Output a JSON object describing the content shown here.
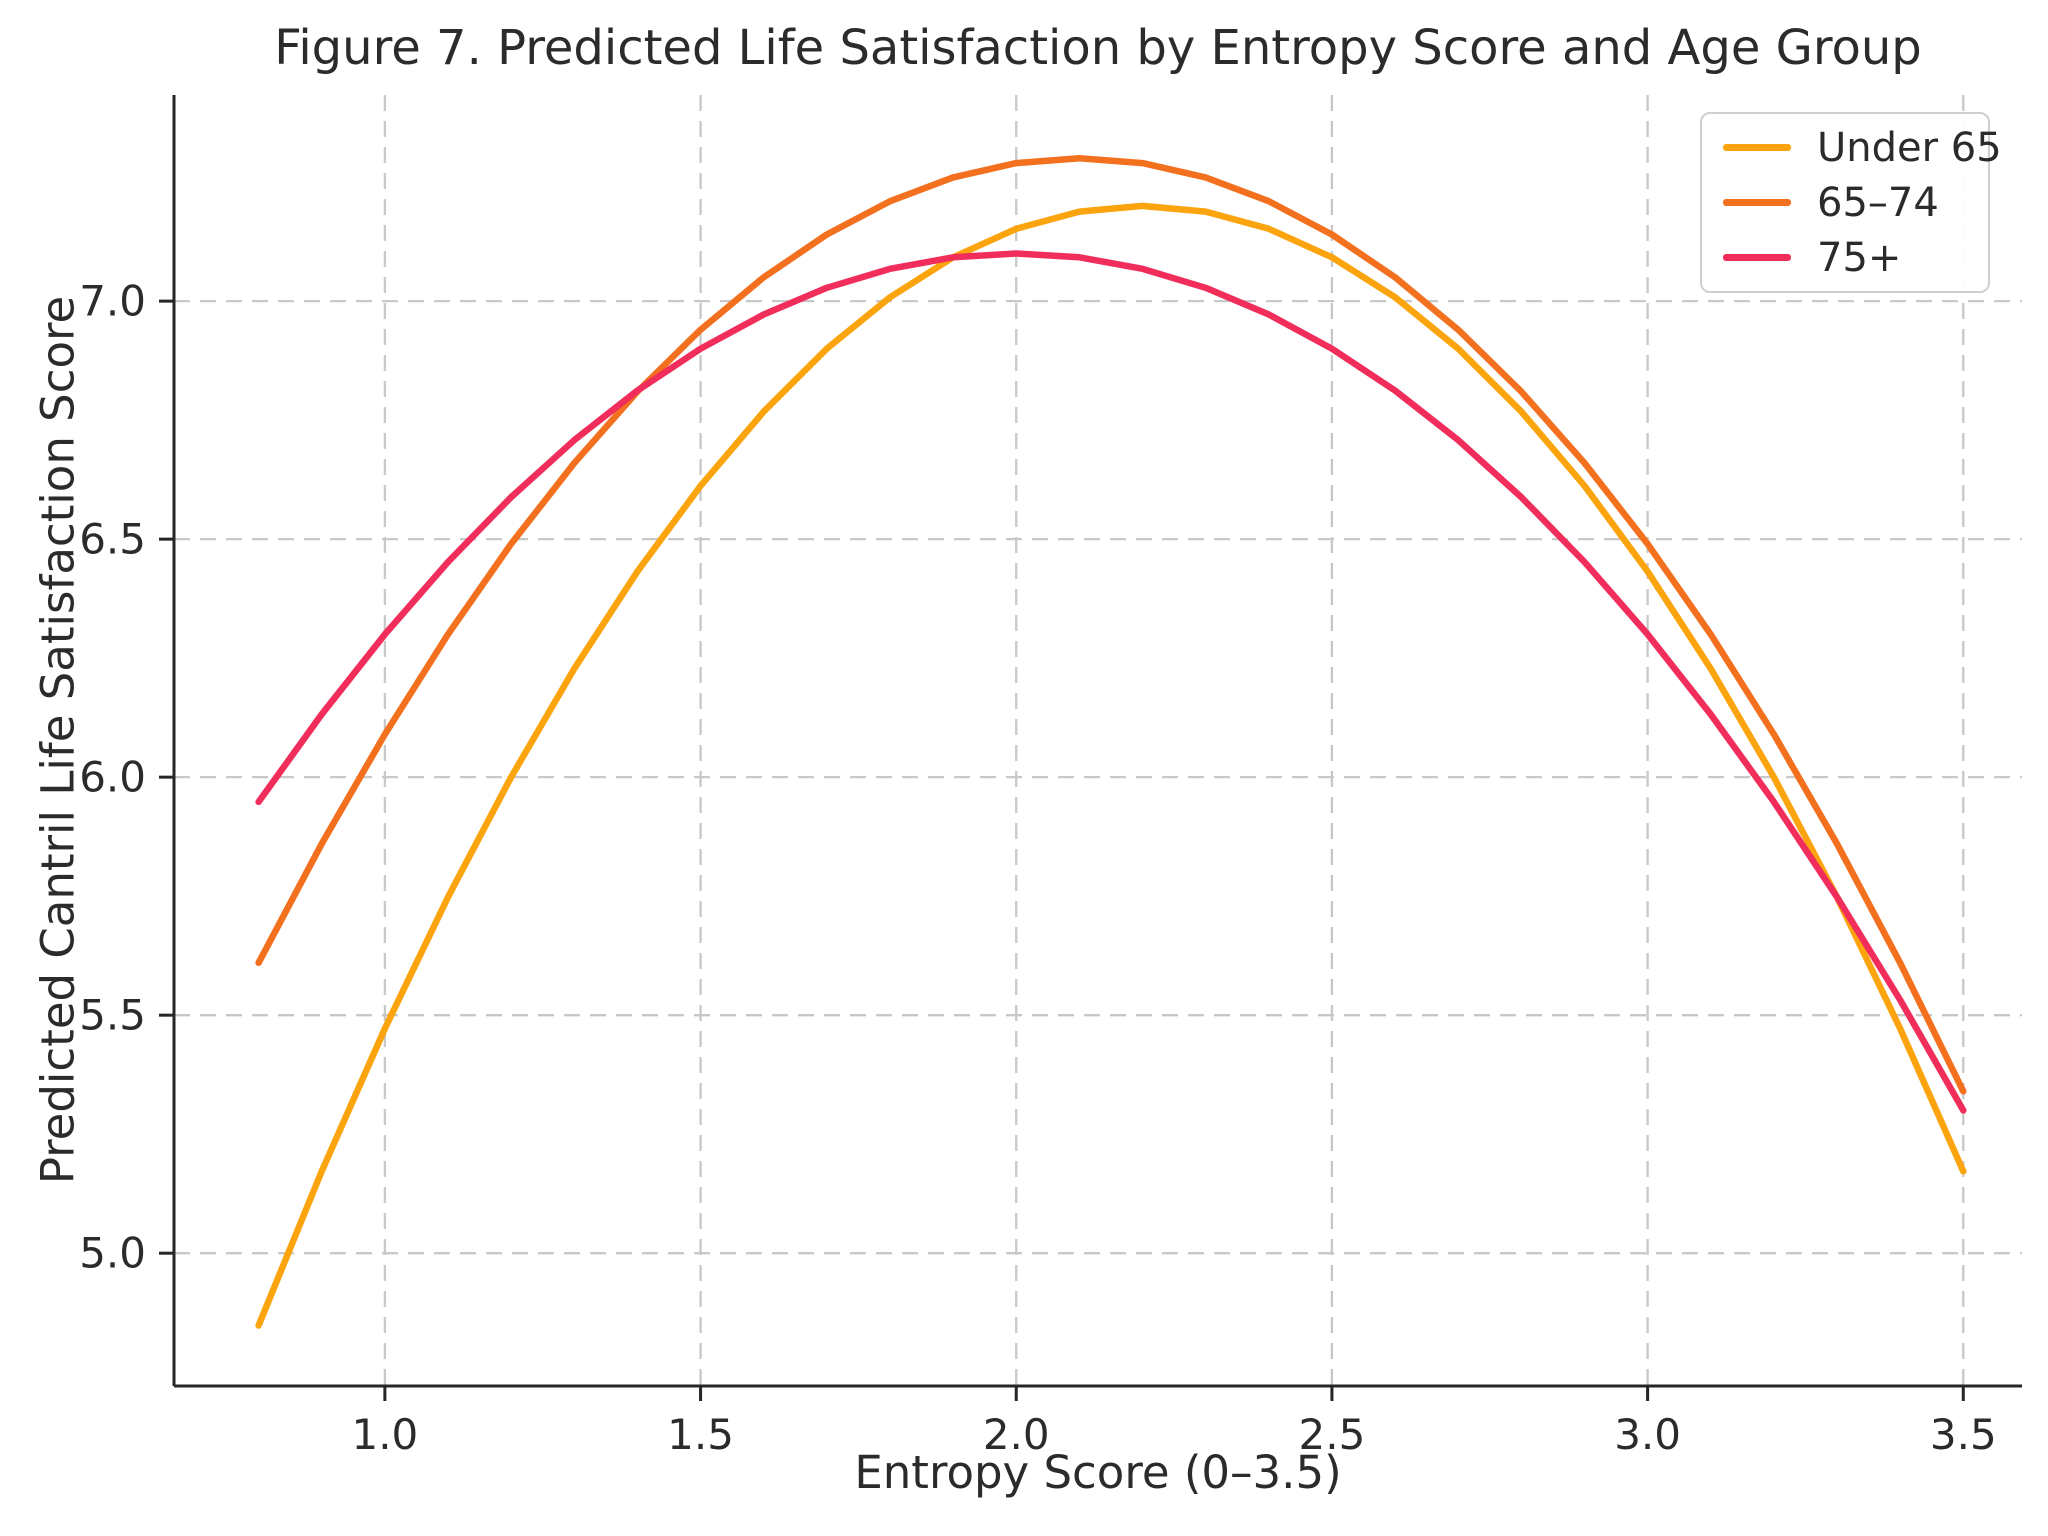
{
  "figure": {
    "title": "Figure 7. Predicted Life Satisfaction by Entropy Score and Age Group"
  },
  "chart_data": {
    "type": "line",
    "title": "Figure 7. Predicted Life Satisfaction by Entropy Score and Age Group",
    "xlabel": "Entropy Score (0–3.5)",
    "ylabel": "Predicted Cantril Life Satisfaction Score",
    "xlim": [
      0.666,
      3.593
    ],
    "ylim": [
      4.721,
      7.433
    ],
    "xticks": [
      1.0,
      1.5,
      2.0,
      2.5,
      3.0,
      3.5
    ],
    "xtick_labels": [
      "1.0",
      "1.5",
      "2.0",
      "2.5",
      "3.0",
      "3.5"
    ],
    "yticks": [
      5.0,
      5.5,
      6.0,
      6.5,
      7.0
    ],
    "ytick_labels": [
      "5.0",
      "5.5",
      "6.0",
      "6.5",
      "7.0"
    ],
    "grid": true,
    "grid_style": "dashed",
    "legend_position": "upper right",
    "x": [
      0.8,
      0.9,
      1.0,
      1.1,
      1.2,
      1.3,
      1.4,
      1.5,
      1.6,
      1.7,
      1.8,
      1.9,
      2.0,
      2.1,
      2.2,
      2.3,
      2.4,
      2.5,
      2.6,
      2.7,
      2.8,
      2.9,
      3.0,
      3.1,
      3.2,
      3.3,
      3.4,
      3.5
    ],
    "series": [
      {
        "name": "Under 65",
        "color": "#FBA40D",
        "peak_x": 2.2,
        "peak_y": 7.2,
        "values": [
          4.848,
          5.172,
          5.472,
          5.748,
          6.0,
          6.228,
          6.432,
          6.612,
          6.768,
          6.9,
          7.008,
          7.092,
          7.152,
          7.188,
          7.2,
          7.188,
          7.152,
          7.092,
          7.008,
          6.9,
          6.768,
          6.612,
          6.432,
          6.228,
          6.0,
          5.748,
          5.472,
          5.172
        ]
      },
      {
        "name": "65–74",
        "color": "#F3701F",
        "peak_x": 2.1,
        "peak_y": 7.3,
        "values": [
          5.61,
          5.86,
          6.09,
          6.3,
          6.49,
          6.66,
          6.81,
          6.94,
          7.05,
          7.14,
          7.21,
          7.26,
          7.29,
          7.3,
          7.29,
          7.26,
          7.21,
          7.14,
          7.05,
          6.94,
          6.81,
          6.66,
          6.49,
          6.3,
          6.09,
          5.86,
          5.61,
          5.34
        ]
      },
      {
        "name": "75+",
        "color": "#F12D5B",
        "peak_x": 2.0,
        "peak_y": 7.1,
        "values": [
          5.948,
          6.132,
          6.3,
          6.452,
          6.588,
          6.708,
          6.812,
          6.9,
          6.972,
          7.028,
          7.068,
          7.092,
          7.1,
          7.092,
          7.068,
          7.028,
          6.972,
          6.9,
          6.812,
          6.708,
          6.588,
          6.452,
          6.3,
          6.132,
          5.948,
          5.748,
          5.532,
          5.3
        ]
      }
    ],
    "colors": {
      "grid": "#c8c8c8",
      "spine": "#262626",
      "tick_text": "#2b2b2b",
      "legend_border": "#cfcfcf"
    }
  }
}
